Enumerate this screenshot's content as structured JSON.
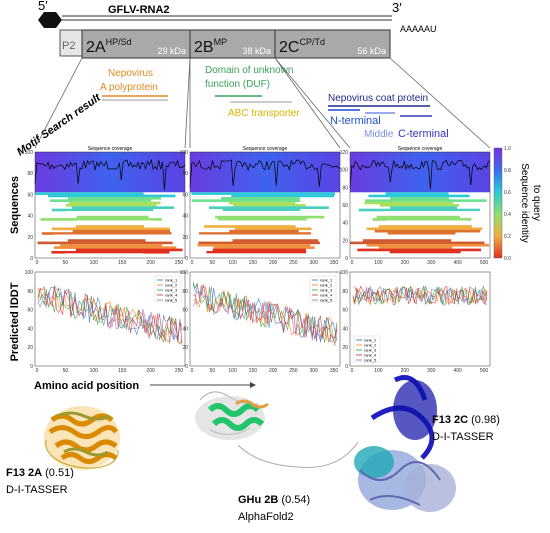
{
  "genome": {
    "five_prime": "5′",
    "name": "GFLV-RNA2",
    "three_prime": "3′",
    "polya": "AAAAAU",
    "p2": "P2",
    "segments": [
      {
        "name": "2A",
        "sup": "HP/Sd",
        "kda": "29 kDa"
      },
      {
        "name": "2B",
        "sup": "MP",
        "kda": "38 kDa"
      },
      {
        "name": "2C",
        "sup": "CP/Td",
        "kda": "56 kDa"
      }
    ]
  },
  "motif_label": "Motif Search result",
  "motifs": {
    "nepovirus_a": [
      "Nepovirus",
      "A polyprotein"
    ],
    "duf": [
      "Domain of unknown",
      "function (DUF)"
    ],
    "abc": "ABC transporter",
    "coat": "Nepovirus coat protein",
    "n_terminal": "N-terminal",
    "middle": "Middle",
    "c_terminal": "C-terminal"
  },
  "sequences_label": "Sequences",
  "plddt_label": "Predicted lDDT",
  "x_label": "Amino acid position",
  "coverage_plots": [
    {
      "title": "Sequence coverage",
      "yticks": [
        "0",
        "20",
        "40",
        "60",
        "80",
        "100"
      ],
      "xticks": [
        "0",
        "50",
        "100",
        "150",
        "200",
        "250"
      ]
    },
    {
      "title": "Sequence coverage",
      "yticks": [
        "0",
        "20",
        "40",
        "60",
        "80",
        "100"
      ],
      "xticks": [
        "0",
        "50",
        "100",
        "150",
        "200",
        "250",
        "300",
        "350"
      ]
    },
    {
      "title": "Sequence coverage",
      "yticks": [
        "0",
        "20",
        "40",
        "60",
        "80",
        "100",
        "120"
      ],
      "xticks": [
        "0",
        "100",
        "200",
        "300",
        "400",
        "500"
      ]
    }
  ],
  "colorbar": {
    "label": [
      "Sequence identity",
      "to query"
    ],
    "ticks": [
      "0.0",
      "0.2",
      "0.4",
      "0.6",
      "0.8",
      "1.0"
    ]
  },
  "plddt_plots": [
    {
      "yticks": [
        "0",
        "20",
        "40",
        "60",
        "80",
        "100"
      ],
      "xticks": [
        "0",
        "50",
        "100",
        "150",
        "200",
        "250"
      ],
      "legend": [
        "rank_1",
        "rank_2",
        "rank_3",
        "rank_4",
        "rank_5"
      ]
    },
    {
      "yticks": [
        "0",
        "20",
        "40",
        "60",
        "80",
        "100"
      ],
      "xticks": [
        "0",
        "50",
        "100",
        "150",
        "200",
        "250",
        "300",
        "350"
      ],
      "legend": [
        "rank_1",
        "rank_2",
        "rank_3",
        "rank_4",
        "rank_5"
      ]
    },
    {
      "yticks": [
        "0",
        "20",
        "40",
        "60",
        "80",
        "100"
      ],
      "xticks": [
        "0",
        "100",
        "200",
        "300",
        "400",
        "500"
      ],
      "legend": [
        "rank_1",
        "rank_2",
        "rank_3",
        "rank_4",
        "rank_5"
      ]
    }
  ],
  "structures": [
    {
      "name": "F13 2A",
      "score": "(0.51)",
      "method": "D-I-TASSER"
    },
    {
      "name": "GHu 2B",
      "score": "(0.54)",
      "method": "AlphaFold2"
    },
    {
      "name": "F13 2C",
      "score": "(0.98)",
      "method": "D-I-TASSER"
    }
  ]
}
